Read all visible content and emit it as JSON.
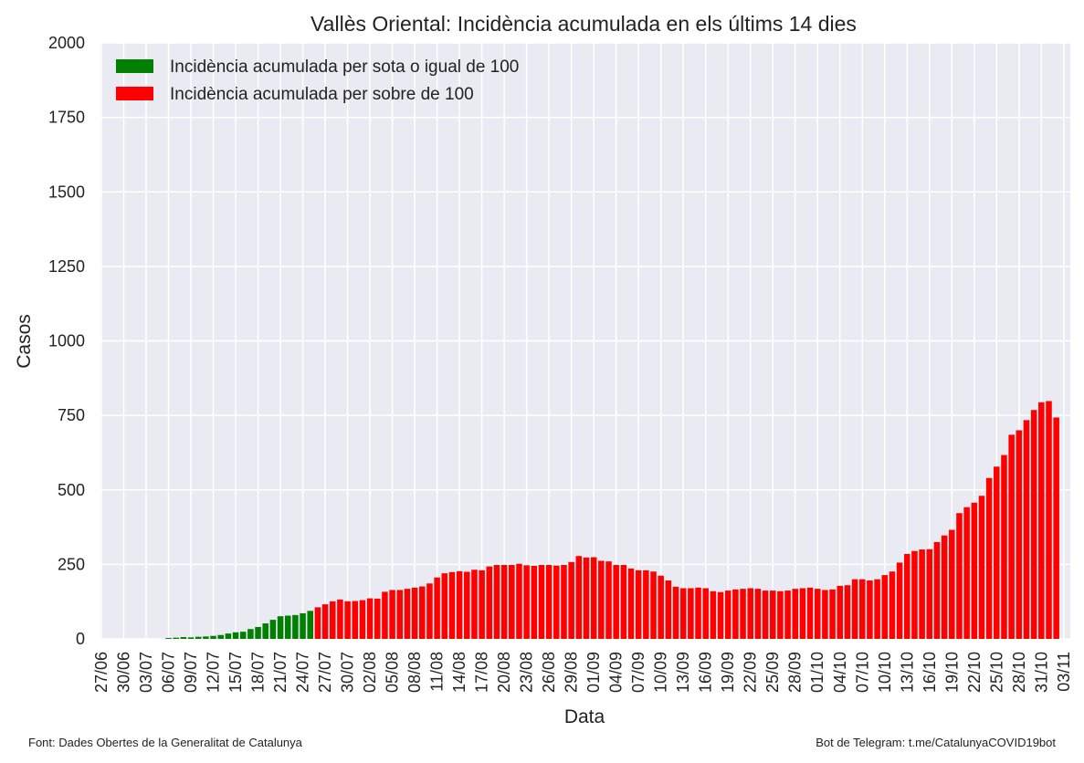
{
  "chart_data": {
    "type": "bar",
    "title": "Vallès Oriental: Incidència acumulada en els últims 14 dies",
    "xlabel": "Data",
    "ylabel": "Casos",
    "ylim": [
      0,
      2000
    ],
    "yticks": [
      0,
      250,
      500,
      750,
      1000,
      1250,
      1500,
      1750,
      2000
    ],
    "xtick_labels": [
      "27/06",
      "30/06",
      "03/07",
      "06/07",
      "09/07",
      "12/07",
      "15/07",
      "18/07",
      "21/07",
      "24/07",
      "27/07",
      "30/07",
      "02/08",
      "05/08",
      "08/08",
      "11/08",
      "14/08",
      "17/08",
      "20/08",
      "23/08",
      "26/08",
      "29/08",
      "01/09",
      "04/09",
      "07/09",
      "10/09",
      "13/09",
      "16/09",
      "19/09",
      "22/09",
      "25/09",
      "28/09",
      "01/10",
      "04/10",
      "07/10",
      "10/10",
      "13/10",
      "16/10",
      "19/10",
      "22/10",
      "25/10",
      "28/10",
      "31/10",
      "03/11"
    ],
    "x_start": "27/06",
    "grid": true,
    "legend_position": "top-left",
    "threshold": 100,
    "colors": {
      "below": "#008000",
      "above": "#ff0000",
      "background": "#eaeaf2",
      "grid": "#ffffff"
    },
    "series": [
      {
        "name": "Incidència acumulada per sota o igual de 100",
        "color": "#008000"
      },
      {
        "name": "Incidència acumulada per sobre de 100",
        "color": "#ff0000"
      }
    ],
    "bars_first_date": "01/07",
    "values": [
      0,
      0,
      0,
      0,
      0,
      3,
      4,
      6,
      5,
      7,
      8,
      10,
      13,
      18,
      22,
      24,
      33,
      40,
      52,
      64,
      76,
      78,
      80,
      86,
      94,
      106,
      116,
      126,
      132,
      126,
      127,
      130,
      136,
      135,
      158,
      164,
      164,
      168,
      172,
      176,
      186,
      206,
      220,
      224,
      227,
      225,
      232,
      230,
      243,
      248,
      248,
      248,
      252,
      247,
      245,
      248,
      248,
      246,
      248,
      258,
      278,
      273,
      274,
      262,
      260,
      248,
      248,
      236,
      230,
      230,
      226,
      212,
      196,
      175,
      170,
      170,
      172,
      170,
      160,
      157,
      162,
      166,
      168,
      170,
      168,
      162,
      162,
      160,
      162,
      168,
      170,
      172,
      168,
      164,
      166,
      178,
      180,
      200,
      200,
      196,
      200,
      214,
      226,
      256,
      285,
      295,
      300,
      301,
      325,
      347,
      366,
      422,
      442,
      457,
      480,
      540,
      578,
      617,
      685,
      700,
      734,
      768,
      794,
      798,
      743
    ]
  },
  "footer": {
    "left": "Font: Dades Obertes de la Generalitat de Catalunya",
    "right": "Bot de Telegram: t.me/CatalunyaCOVID19bot"
  }
}
